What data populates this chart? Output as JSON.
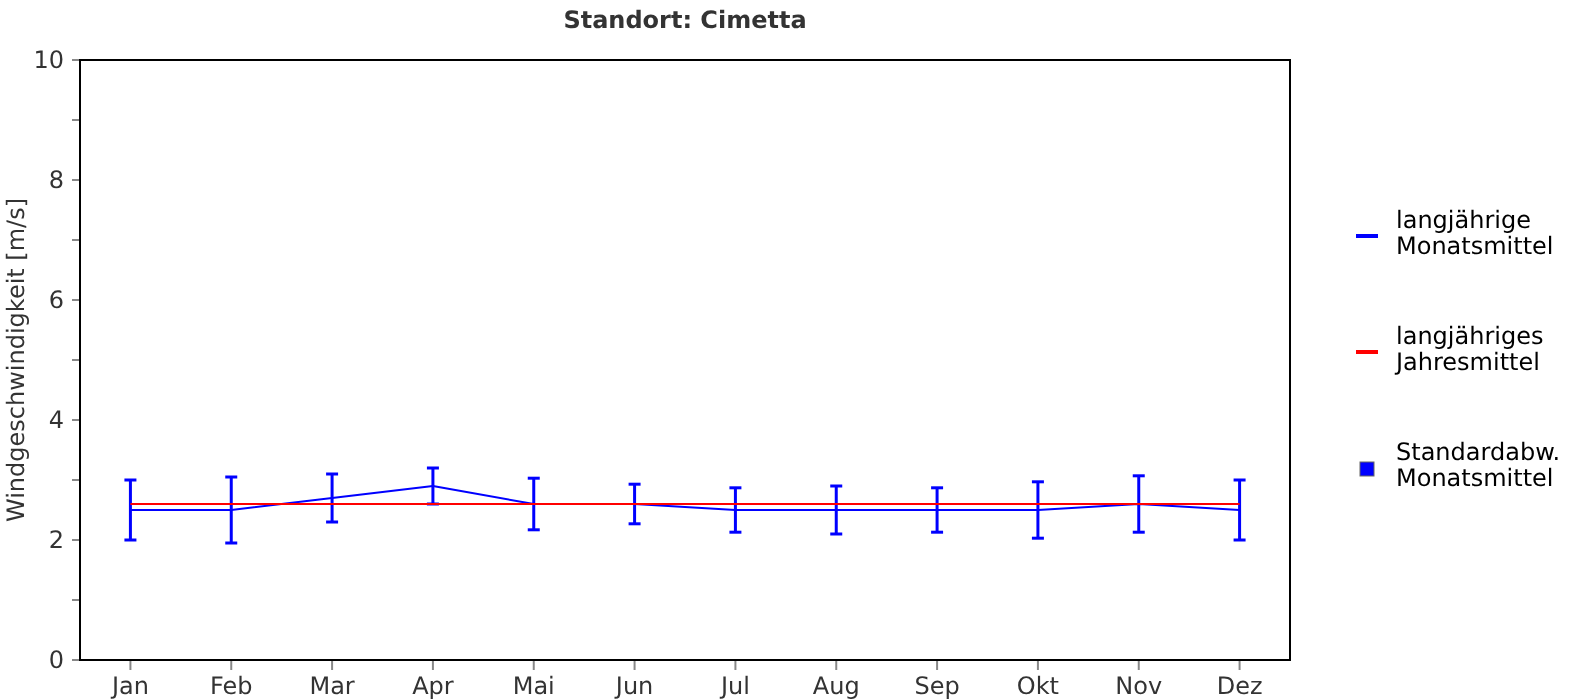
{
  "chart_data": {
    "type": "line",
    "title": "Standort: Cimetta",
    "ylabel": "Windgeschwindigkeit [m/s]",
    "categories": [
      "Jan",
      "Feb",
      "Mar",
      "Apr",
      "Mai",
      "Jun",
      "Jul",
      "Aug",
      "Sep",
      "Okt",
      "Nov",
      "Dez"
    ],
    "series": [
      {
        "name": "langjährige Monatsmittel",
        "color": "#0000ff",
        "values": [
          2.5,
          2.5,
          2.7,
          2.9,
          2.6,
          2.6,
          2.5,
          2.5,
          2.5,
          2.5,
          2.6,
          2.5
        ],
        "errors": [
          0.5,
          0.55,
          0.4,
          0.3,
          0.43,
          0.33,
          0.37,
          0.4,
          0.37,
          0.47,
          0.47,
          0.5
        ]
      },
      {
        "name": "langjähriges Jahresmittel",
        "color": "#ff0000",
        "values": [
          2.6,
          2.6,
          2.6,
          2.6,
          2.6,
          2.6,
          2.6,
          2.6,
          2.6,
          2.6,
          2.6,
          2.6
        ]
      }
    ],
    "annotations": [
      "Standardabw. Monatsmittel"
    ],
    "ylim": [
      0,
      10
    ],
    "yticks": [
      0,
      {
        "value": 1,
        "label": null
      },
      2,
      {
        "value": 3,
        "label": null
      },
      4,
      {
        "value": 5,
        "label": null
      },
      6,
      {
        "value": 7,
        "label": null
      },
      8,
      {
        "value": 9,
        "label": null
      },
      10
    ],
    "grid": false,
    "legend": "right",
    "marker": "none",
    "line_style": "solid"
  }
}
